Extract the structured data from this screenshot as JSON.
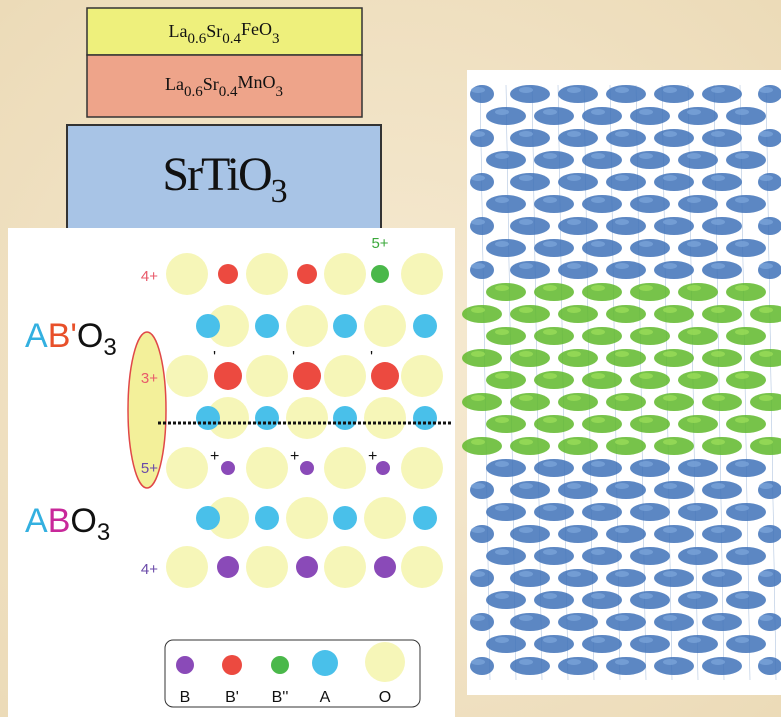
{
  "layers": [
    {
      "parts": [
        "La",
        "0.6",
        "Sr",
        "0.4",
        "FeO",
        "3"
      ]
    },
    {
      "parts": [
        "La",
        "0.6",
        "Sr",
        "0.4",
        "MnO",
        "3"
      ]
    },
    {
      "parts": [
        "SrTiO",
        "3"
      ]
    }
  ],
  "formulas": [
    {
      "parts": [
        "A",
        "B'",
        "O",
        "3"
      ]
    },
    {
      "parts": [
        "A",
        "B",
        "O",
        "3"
      ]
    }
  ],
  "charges": [
    "4+",
    "3+",
    "5+",
    "4+"
  ],
  "top_charge": "5+",
  "primes": [
    "'",
    "'",
    "'"
  ],
  "pluses": [
    "+",
    "+",
    "+"
  ],
  "legend": [
    "B",
    "B'",
    "B''",
    "A",
    "O"
  ]
}
